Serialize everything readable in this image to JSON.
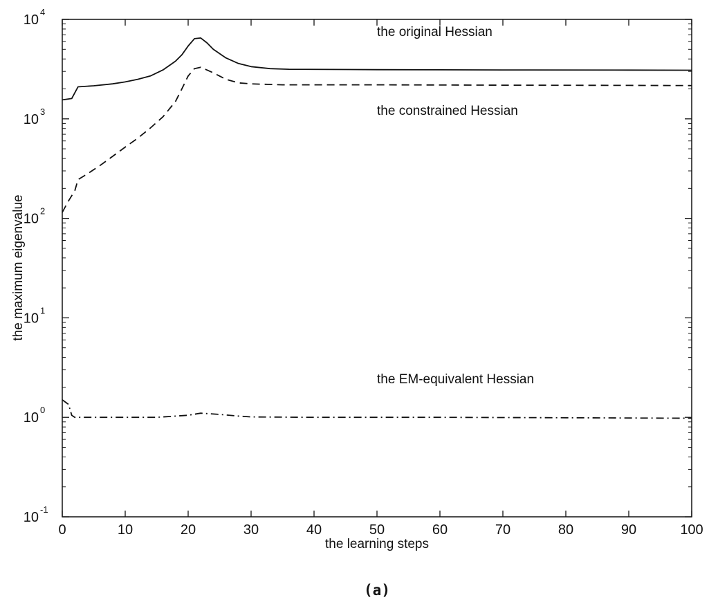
{
  "chart_data": {
    "type": "line",
    "title": "",
    "xlabel": "the learning steps",
    "ylabel": "the maximum eigenvalue",
    "yscale": "log",
    "xlim": [
      0,
      100
    ],
    "ylim": [
      0.1,
      10000
    ],
    "grid": false,
    "legend": "none",
    "x_ticks": [
      "0",
      "10",
      "20",
      "30",
      "40",
      "50",
      "60",
      "70",
      "80",
      "90",
      "100"
    ],
    "y_ticks": [
      {
        "base": "10",
        "exp": "-1"
      },
      {
        "base": "10",
        "exp": "0"
      },
      {
        "base": "10",
        "exp": "1"
      },
      {
        "base": "10",
        "exp": "2"
      },
      {
        "base": "10",
        "exp": "3"
      },
      {
        "base": "10",
        "exp": "4"
      }
    ],
    "annotations": [
      {
        "text": "the original Hessian",
        "x": 50,
        "y": 6800
      },
      {
        "text": "the constrained Hessian",
        "x": 50,
        "y": 1100
      },
      {
        "text": "the EM-equivalent Hessian",
        "x": 50,
        "y": 2.2
      }
    ],
    "series": [
      {
        "style": "solid",
        "points": [
          [
            0,
            1550
          ],
          [
            1.5,
            1600
          ],
          [
            2.5,
            2100
          ],
          [
            5,
            2150
          ],
          [
            8,
            2250
          ],
          [
            10,
            2350
          ],
          [
            12,
            2500
          ],
          [
            14,
            2700
          ],
          [
            16,
            3100
          ],
          [
            18,
            3800
          ],
          [
            19,
            4400
          ],
          [
            20,
            5400
          ],
          [
            21,
            6400
          ],
          [
            22,
            6500
          ],
          [
            23,
            5800
          ],
          [
            24,
            5000
          ],
          [
            26,
            4100
          ],
          [
            28,
            3600
          ],
          [
            30,
            3350
          ],
          [
            33,
            3200
          ],
          [
            36,
            3150
          ],
          [
            50,
            3120
          ],
          [
            70,
            3100
          ],
          [
            90,
            3090
          ],
          [
            100,
            3080
          ]
        ]
      },
      {
        "style": "dashed",
        "points": [
          [
            0,
            115
          ],
          [
            1,
            150
          ],
          [
            2,
            190
          ],
          [
            2.5,
            245
          ],
          [
            4,
            280
          ],
          [
            6,
            340
          ],
          [
            8,
            420
          ],
          [
            10,
            520
          ],
          [
            12,
            640
          ],
          [
            14,
            810
          ],
          [
            16,
            1050
          ],
          [
            18,
            1500
          ],
          [
            19,
            2000
          ],
          [
            20,
            2700
          ],
          [
            21,
            3200
          ],
          [
            22,
            3300
          ],
          [
            24,
            2900
          ],
          [
            26,
            2500
          ],
          [
            28,
            2300
          ],
          [
            30,
            2250
          ],
          [
            35,
            2200
          ],
          [
            50,
            2200
          ],
          [
            70,
            2180
          ],
          [
            90,
            2170
          ],
          [
            100,
            2160
          ]
        ]
      },
      {
        "style": "dash-dot",
        "points": [
          [
            0,
            1.5
          ],
          [
            1,
            1.35
          ],
          [
            1.5,
            1.05
          ],
          [
            2,
            1.0
          ],
          [
            5,
            1.0
          ],
          [
            10,
            1.0
          ],
          [
            15,
            1.0
          ],
          [
            20,
            1.05
          ],
          [
            22,
            1.1
          ],
          [
            25,
            1.07
          ],
          [
            28,
            1.03
          ],
          [
            30,
            1.01
          ],
          [
            40,
            1.0
          ],
          [
            60,
            1.0
          ],
          [
            80,
            0.99
          ],
          [
            100,
            0.98
          ]
        ]
      }
    ],
    "caption": "(a)"
  }
}
